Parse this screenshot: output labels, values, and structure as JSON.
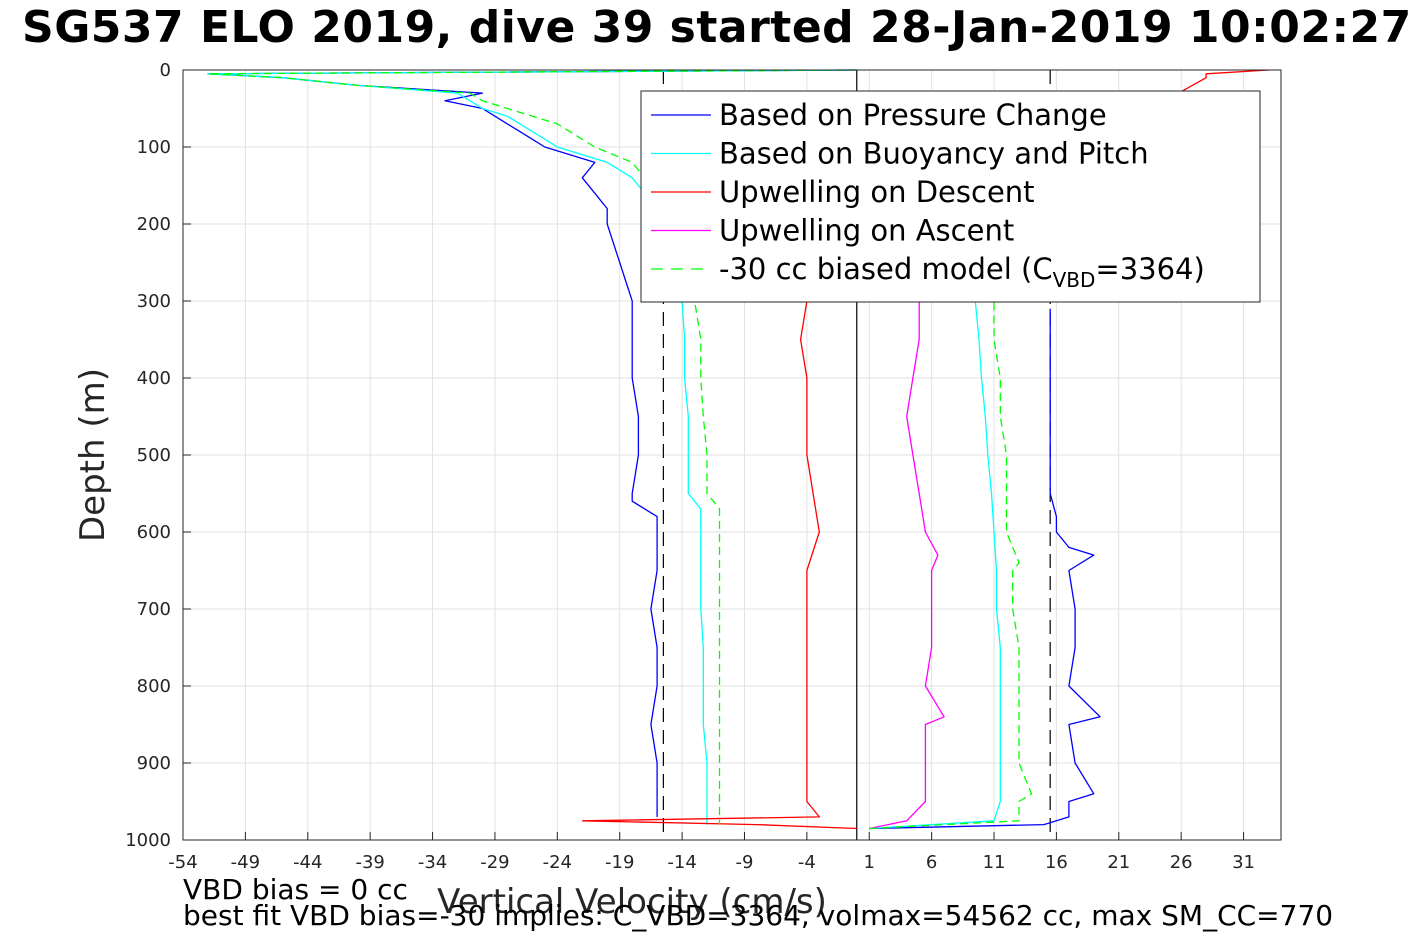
{
  "title": "SG537 ELO 2019, dive 39 started 28-Jan-2019 10:02:27",
  "footnotes": {
    "bias": "VBD bias = 0 cc",
    "fit": "best fit VBD bias=-30 implies: C_VBD=3364, volmax=54562 cc, max SM_CC=770"
  },
  "chart_data": {
    "type": "line",
    "xlabel": "Vertical Velocity (cm/s)",
    "ylabel": "Depth (m)",
    "xlim": [
      -54,
      34
    ],
    "ylim": [
      0,
      1000
    ],
    "y_reversed": true,
    "x_ticks": [
      -54,
      -49,
      -44,
      -39,
      -34,
      -29,
      -24,
      -19,
      -14,
      -9,
      -4,
      1,
      6,
      11,
      16,
      21,
      26,
      31
    ],
    "y_ticks": [
      0,
      100,
      200,
      300,
      400,
      500,
      600,
      700,
      800,
      900,
      1000
    ],
    "grid": true,
    "legend_position": "top-right",
    "reference_lines": [
      {
        "type": "vertical",
        "x": 0,
        "style": "solid",
        "color": "#000000"
      },
      {
        "type": "vertical",
        "x": -15.5,
        "style": "dashed",
        "color": "#000000"
      },
      {
        "type": "vertical",
        "x": 15.5,
        "style": "dashed",
        "color": "#000000"
      }
    ],
    "series": [
      {
        "name": "Based on Pressure Change",
        "color": "#0000ff",
        "style": "solid",
        "descent": {
          "depth": [
            0,
            5,
            10,
            20,
            30,
            40,
            50,
            60,
            70,
            80,
            90,
            100,
            120,
            140,
            160,
            180,
            200,
            250,
            300,
            350,
            400,
            450,
            500,
            550,
            560,
            580,
            600,
            650,
            700,
            750,
            800,
            850,
            900,
            950,
            970
          ],
          "velocity": [
            0,
            -52,
            -46,
            -40,
            -30,
            -33,
            -30,
            -29,
            -28,
            -27,
            -26,
            -25,
            -21,
            -22,
            -21,
            -20,
            -20,
            -19,
            -18,
            -18,
            -18,
            -17.5,
            -17.5,
            -18,
            -18,
            -16,
            -16,
            -16,
            -16.5,
            -16,
            -16,
            -16.5,
            -16,
            -16,
            -16
          ]
        },
        "ascent": {
          "depth": [
            985,
            980,
            970,
            950,
            940,
            900,
            850,
            840,
            800,
            750,
            700,
            650,
            630,
            620,
            600,
            580,
            550,
            500,
            450,
            400,
            350,
            310
          ],
          "velocity": [
            1,
            15,
            17,
            17,
            19,
            17.5,
            17,
            19.5,
            17,
            17.5,
            17.5,
            17,
            19,
            17,
            16,
            16,
            15.5,
            15.5,
            15.5,
            15.5,
            15.5,
            15.5
          ]
        }
      },
      {
        "name": "Based on Buoyancy and Pitch",
        "color": "#00ffff",
        "style": "solid",
        "descent": {
          "depth": [
            0,
            5,
            10,
            20,
            30,
            40,
            50,
            60,
            70,
            80,
            100,
            120,
            140,
            160,
            180,
            200,
            250,
            300,
            350,
            400,
            450,
            500,
            550,
            560,
            570,
            600,
            650,
            700,
            750,
            800,
            850,
            900,
            950,
            980
          ],
          "velocity": [
            0,
            -52,
            -46,
            -40,
            -32,
            -31,
            -30,
            -28,
            -27,
            -26,
            -24,
            -20,
            -18,
            -17,
            -16,
            -16,
            -15,
            -14,
            -13.8,
            -13.8,
            -13.5,
            -13.5,
            -13.5,
            -13,
            -12.5,
            -12.5,
            -12.5,
            -12.5,
            -12.3,
            -12.3,
            -12.3,
            -12,
            -12,
            -12
          ]
        },
        "ascent": {
          "depth": [
            985,
            975,
            950,
            900,
            850,
            800,
            750,
            700,
            650,
            600,
            550,
            500,
            450,
            400,
            350,
            300
          ],
          "velocity": [
            1,
            11,
            11.5,
            11.5,
            11.5,
            11.5,
            11.5,
            11.2,
            11.2,
            11,
            10.8,
            10.5,
            10.3,
            10,
            9.8,
            9.5
          ]
        }
      },
      {
        "name": "Upwelling on Descent",
        "color": "#ff0000",
        "style": "solid",
        "descent": {
          "depth": [
            0,
            5,
            10,
            300,
            350,
            400,
            450,
            500,
            550,
            600,
            650,
            700,
            750,
            800,
            850,
            900,
            950,
            970,
            975
          ],
          "velocity": [
            33,
            28,
            28,
            -4,
            -4.5,
            -4,
            -4,
            -4,
            -3.5,
            -3,
            -4,
            -4,
            -4,
            -4,
            -4,
            -4,
            -4,
            -3,
            -22
          ]
        },
        "ascent": {
          "depth": [
            975,
            980,
            985
          ],
          "velocity": [
            -22,
            -8,
            0
          ]
        }
      },
      {
        "name": "Upwelling on Ascent",
        "color": "#ff00ff",
        "style": "solid",
        "descent": {
          "depth": [
            985,
            975,
            950,
            900,
            850,
            840,
            800,
            750,
            700,
            650,
            630,
            600,
            550,
            500,
            450,
            400,
            350,
            300
          ],
          "velocity": [
            1,
            4,
            5.5,
            5.5,
            5.5,
            7,
            5.5,
            6,
            6,
            6,
            6.5,
            5.5,
            5,
            4.5,
            4,
            4.5,
            5,
            5
          ]
        },
        "ascent": {
          "depth": [],
          "velocity": []
        }
      },
      {
        "name": "-30 cc biased model",
        "legend_sub": "VBD",
        "legend_value": "3364",
        "color": "#00ff00",
        "style": "dashed",
        "descent": {
          "depth": [
            0,
            5,
            10,
            20,
            30,
            40,
            50,
            60,
            70,
            80,
            100,
            120,
            140,
            160,
            180,
            200,
            250,
            300,
            350,
            400,
            450,
            500,
            550,
            560,
            570,
            600,
            650,
            700,
            750,
            800,
            850,
            900,
            950,
            980
          ],
          "velocity": [
            0,
            -52,
            -46,
            -40,
            -31,
            -30,
            -28,
            -26,
            -24,
            -23,
            -21,
            -18,
            -17,
            -16,
            -15.5,
            -15.5,
            -14,
            -13,
            -12.5,
            -12.5,
            -12.3,
            -12,
            -12,
            -11.5,
            -11,
            -11,
            -11,
            -11,
            -11,
            -11,
            -11,
            -11,
            -11,
            -11
          ]
        },
        "ascent": {
          "depth": [
            985,
            975,
            950,
            940,
            900,
            850,
            800,
            750,
            700,
            650,
            640,
            600,
            550,
            500,
            450,
            400,
            350,
            300
          ],
          "velocity": [
            1,
            13,
            13,
            14,
            13,
            13,
            13,
            13,
            12.5,
            12.5,
            13,
            12,
            12,
            12,
            11.5,
            11.5,
            11,
            11
          ]
        }
      }
    ]
  }
}
